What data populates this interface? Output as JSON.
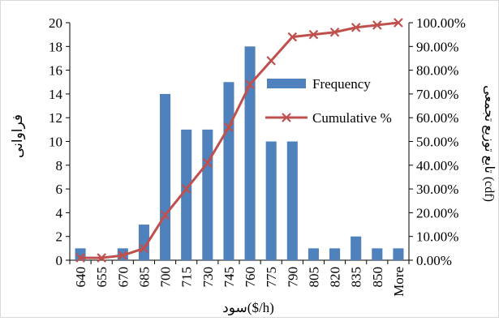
{
  "chart_data": {
    "type": "bar",
    "categories": [
      "640",
      "655",
      "670",
      "685",
      "700",
      "715",
      "730",
      "745",
      "760",
      "775",
      "790",
      "805",
      "820",
      "835",
      "850",
      "More"
    ],
    "series": [
      {
        "name": "Frequency",
        "type": "bar",
        "axis": "left",
        "color": "#4f81bd",
        "values": [
          1,
          0,
          1,
          3,
          14,
          11,
          11,
          15,
          18,
          10,
          10,
          1,
          1,
          2,
          1,
          1
        ]
      },
      {
        "name": "Cumulative %",
        "type": "line",
        "axis": "right",
        "color": "#c0504d",
        "marker": "x",
        "values": [
          1.0,
          1.0,
          2.0,
          5.0,
          19.0,
          30.0,
          41.0,
          56.0,
          74.0,
          84.0,
          94.0,
          95.0,
          96.0,
          98.0,
          99.0,
          100.0
        ]
      }
    ],
    "xlabel": "سود($/h)",
    "ylabel_left": "فراوانی",
    "ylabel_right": "تابع توزیع تجمعی (cdf)",
    "ylim_left": [
      0,
      20
    ],
    "yticks_left": [
      "0",
      "2",
      "4",
      "6",
      "8",
      "10",
      "12",
      "14",
      "16",
      "18",
      "20"
    ],
    "ylim_right": [
      0,
      100
    ],
    "yticks_right": [
      "0.00%",
      "10.00%",
      "20.00%",
      "30.00%",
      "40.00%",
      "50.00%",
      "60.00%",
      "70.00%",
      "80.00%",
      "90.00%",
      "100.00%"
    ],
    "grid": false,
    "legend": {
      "position": "right-inside",
      "entries": [
        "Frequency",
        "Cumulative %"
      ]
    }
  }
}
